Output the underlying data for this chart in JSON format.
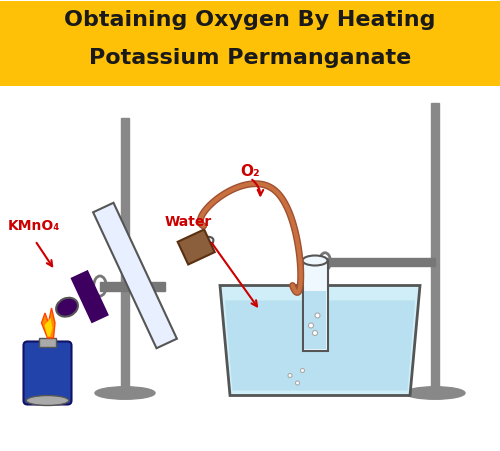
{
  "title_line1": "Obtaining Oxygen By Heating",
  "title_line2": "Potassium Permanganate",
  "title_bg_color": "#FFC107",
  "title_text_color": "#1a1a1a",
  "title_fontsize": 16,
  "bg_color": "#ffffff",
  "label_KMnO4": "KMnO₄",
  "label_O2": "O₂",
  "label_water": "Water",
  "label_color_red": "#cc0000",
  "stand_color": "#888888",
  "tube_color": "#cccccc",
  "tube_edge": "#555555",
  "stopper_color": "#8B5E3C",
  "kmno4_color": "#3d0060",
  "delivery_tube_color": "#a05030",
  "water_color": "#d0eef8",
  "water_edge": "#555555",
  "collection_tube_color": "#e8e8e8",
  "spirit_lamp_body": "#2244aa",
  "spirit_lamp_base": "#aaaaaa",
  "flame_orange": "#FF8C00",
  "flame_yellow": "#FFD700",
  "flame_red": "#FF4500",
  "clamp_color": "#777777",
  "bubble_color": "#ffffff"
}
